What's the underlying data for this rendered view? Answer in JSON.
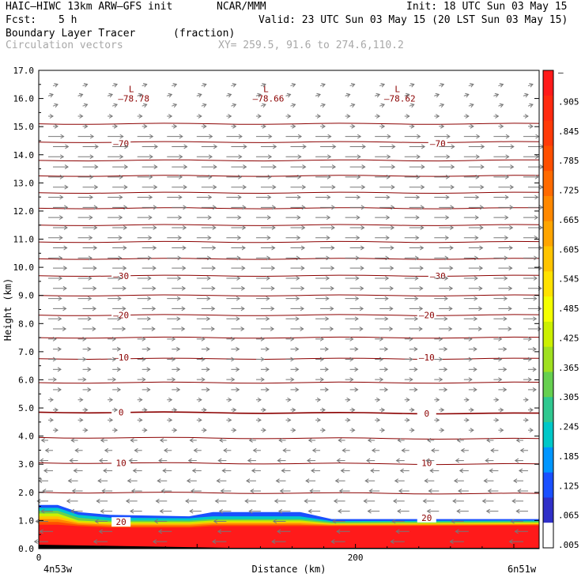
{
  "header": {
    "model": "HAIC–HIWC 13km ARW–GFS init",
    "org": "NCAR/MMM",
    "init": "Init: 18 UTC Sun 03 May 15",
    "fcst_label": "Fcst:",
    "fcst_value": "5 h",
    "valid": "Valid: 23 UTC Sun 03 May 15 (20 LST Sun 03 May 15)",
    "field_name": "Boundary Layer Tracer",
    "field_units": "(fraction)",
    "vector_label": "Circulation vectors",
    "xy_label": "XY= 259.5, 91.6 to 274.6,110.2"
  },
  "chart_data": {
    "type": "heatmap",
    "ylabel": "Height (km)",
    "xlabel": "Distance (km)",
    "ylim": [
      0,
      17
    ],
    "xlim": [
      0,
      316
    ],
    "y_ticks": [
      "0.0",
      "1.0",
      "2.0",
      "3.0",
      "4.0",
      "5.0",
      "6.0",
      "7.0",
      "8.0",
      "9.0",
      "10.0",
      "11.0",
      "12.0",
      "13.0",
      "14.0",
      "15.0",
      "16.0",
      "17.0"
    ],
    "x_ticks": [
      {
        "value": 0,
        "label": "0"
      },
      {
        "value": 200,
        "label": "200"
      }
    ],
    "x_end_labels": {
      "left": "4n53w",
      "right": "6n51w"
    },
    "colorbar": {
      "labels": [
        "–",
        ".905",
        ".845",
        ".785",
        ".725",
        ".665",
        ".605",
        ".545",
        ".485",
        ".425",
        ".365",
        ".305",
        ".245",
        ".185",
        ".125",
        ".065",
        ".005"
      ],
      "colors": [
        "#ff1a1a",
        "#ff2a10",
        "#ff3a08",
        "#ff4f00",
        "#ff6a00",
        "#ff8800",
        "#ffa500",
        "#ffc400",
        "#ffe200",
        "#f4ff00",
        "#ccf000",
        "#a0e020",
        "#66d050",
        "#30c890",
        "#00c8c8",
        "#0096ff",
        "#1a50ff",
        "#3030c8",
        "#ffffff"
      ]
    },
    "contour_labels": [
      {
        "x": 52,
        "y": 14.4,
        "text": "–70"
      },
      {
        "x": 252,
        "y": 14.4,
        "text": "–70"
      },
      {
        "x": 52,
        "y": 9.7,
        "text": "–30"
      },
      {
        "x": 252,
        "y": 9.7,
        "text": "–30"
      },
      {
        "x": 52,
        "y": 8.3,
        "text": "–20"
      },
      {
        "x": 245,
        "y": 8.3,
        "text": "–20"
      },
      {
        "x": 52,
        "y": 6.8,
        "text": "–10"
      },
      {
        "x": 245,
        "y": 6.8,
        "text": "–10"
      },
      {
        "x": 52,
        "y": 4.85,
        "text": "0"
      },
      {
        "x": 245,
        "y": 4.8,
        "text": "0"
      },
      {
        "x": 52,
        "y": 3.05,
        "text": "10"
      },
      {
        "x": 245,
        "y": 3.05,
        "text": "10"
      },
      {
        "x": 52,
        "y": 0.95,
        "text": "20"
      },
      {
        "x": 245,
        "y": 1.1,
        "text": "20"
      }
    ],
    "lows": [
      {
        "x": 60,
        "y": 16.0,
        "mark": "L",
        "value": "–78.78"
      },
      {
        "x": 145,
        "y": 16.0,
        "mark": "L",
        "value": "–78.66"
      },
      {
        "x": 228,
        "y": 16.0,
        "mark": "L",
        "value": "–78.62"
      }
    ],
    "colors": {
      "contour": "#8b0000",
      "vector": "#787878",
      "axis": "#000000"
    }
  }
}
